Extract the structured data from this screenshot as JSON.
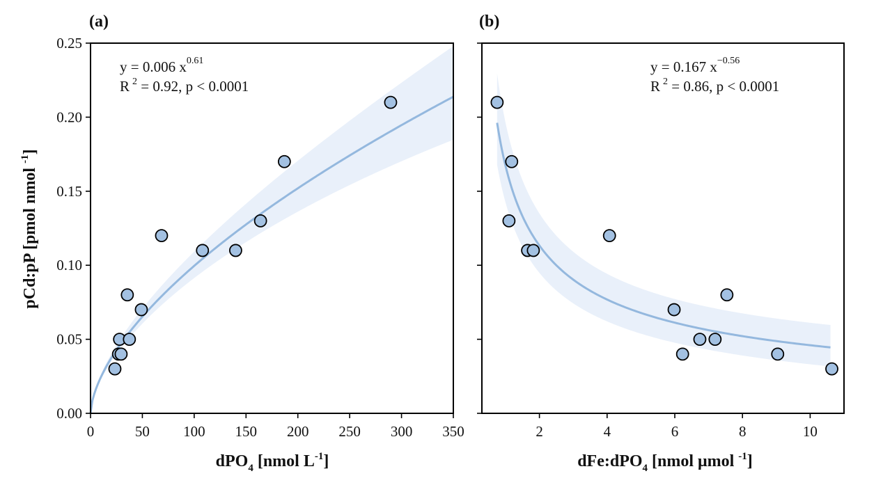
{
  "chart_data": [
    {
      "type": "scatter",
      "panel_label": "(a)",
      "xlabel": {
        "main": "dPO",
        "sub": "4",
        "rest": " [nmol L",
        "sup": "-1",
        "end": "]"
      },
      "ylabel": {
        "main": "pCd:pP [pmol nmol ",
        "sup": "-1",
        "end": "]"
      },
      "xlim": [
        0,
        350
      ],
      "ylim": [
        0,
        0.25
      ],
      "xticks": [
        0,
        50,
        100,
        150,
        200,
        250,
        300,
        350
      ],
      "xtick_labels": [
        "0",
        "50",
        "100",
        "150",
        "200",
        "250",
        "300",
        "350"
      ],
      "yticks": [
        0,
        0.05,
        0.1,
        0.15,
        0.2,
        0.25
      ],
      "ytick_labels": [
        "0.00",
        "0.05",
        "0.10",
        "0.15",
        "0.20",
        "0.25"
      ],
      "grid": false,
      "points": [
        {
          "x": 23.5,
          "y": 0.03
        },
        {
          "x": 27,
          "y": 0.04
        },
        {
          "x": 29.5,
          "y": 0.04
        },
        {
          "x": 28,
          "y": 0.05
        },
        {
          "x": 37.5,
          "y": 0.05
        },
        {
          "x": 35.5,
          "y": 0.08
        },
        {
          "x": 49,
          "y": 0.07
        },
        {
          "x": 68.5,
          "y": 0.12
        },
        {
          "x": 108,
          "y": 0.11
        },
        {
          "x": 140,
          "y": 0.11
        },
        {
          "x": 164,
          "y": 0.13
        },
        {
          "x": 187,
          "y": 0.17
        },
        {
          "x": 289.5,
          "y": 0.21
        }
      ],
      "fit": {
        "model": "power",
        "a": 0.006,
        "b": 0.61,
        "x_range": [
          0,
          350
        ],
        "ci_rel_width_at_max": 0.16
      },
      "annotation": {
        "line1": "y = 0.006 x",
        "line1_sup": "0.61",
        "line2_pre": "R",
        "line2_sup": "2",
        "line2_post": " = 0.92, p < 0.0001"
      },
      "colors": {
        "marker": "#a3c1e2",
        "fit_line": "#94b8de",
        "band": "#e9f0fa",
        "edge": "#000000"
      }
    },
    {
      "type": "scatter",
      "panel_label": "(b)",
      "xlabel": {
        "main": "dFe:dPO",
        "sub": "4",
        "rest": " [nmol μmol ",
        "sup": "-1",
        "end": "]"
      },
      "xlim": [
        0.3,
        11.0
      ],
      "ylim": [
        0,
        0.25
      ],
      "xticks": [
        2,
        4,
        6,
        8,
        10
      ],
      "xtick_labels": [
        "2",
        "4",
        "6",
        "8",
        "10"
      ],
      "yticks": [
        0,
        0.05,
        0.1,
        0.15,
        0.2,
        0.25
      ],
      "grid": false,
      "points": [
        {
          "x": 0.75,
          "y": 0.21
        },
        {
          "x": 1.18,
          "y": 0.17
        },
        {
          "x": 1.1,
          "y": 0.13
        },
        {
          "x": 1.65,
          "y": 0.11
        },
        {
          "x": 1.82,
          "y": 0.11
        },
        {
          "x": 4.07,
          "y": 0.12
        },
        {
          "x": 5.98,
          "y": 0.07
        },
        {
          "x": 7.54,
          "y": 0.08
        },
        {
          "x": 6.23,
          "y": 0.04
        },
        {
          "x": 6.74,
          "y": 0.05
        },
        {
          "x": 7.19,
          "y": 0.05
        },
        {
          "x": 9.04,
          "y": 0.04
        },
        {
          "x": 10.64,
          "y": 0.03
        }
      ],
      "fit": {
        "model": "power",
        "a": 0.167,
        "b": -0.56,
        "x_range": [
          0.75,
          10.6
        ],
        "ci_rel_width_at_max": 0.34
      },
      "annotation": {
        "line1": "y = 0.167 x",
        "line1_sup": "−0.56",
        "line2_pre": "R",
        "line2_sup": "2",
        "line2_post": " = 0.86, p < 0.0001"
      },
      "colors": {
        "marker": "#a3c1e2",
        "fit_line": "#94b8de",
        "band": "#e9f0fa",
        "edge": "#000000"
      }
    }
  ]
}
